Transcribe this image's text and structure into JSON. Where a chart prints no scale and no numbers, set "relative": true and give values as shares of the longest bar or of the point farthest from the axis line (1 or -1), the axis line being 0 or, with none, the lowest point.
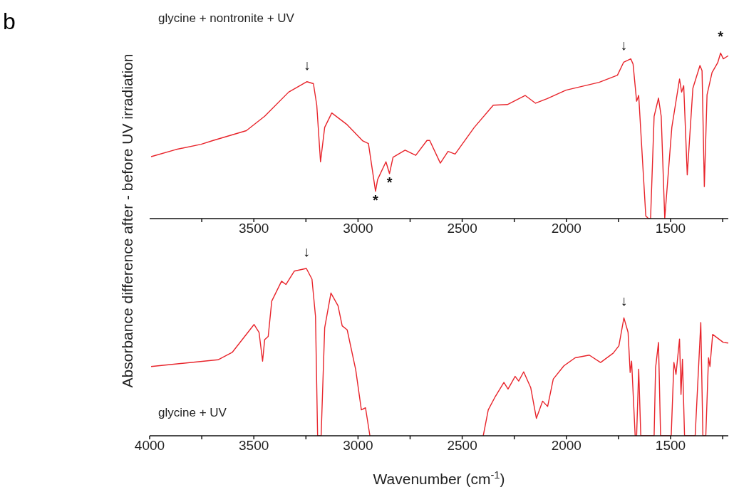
{
  "chart_data": [
    {
      "type": "line",
      "relative": true,
      "ylabel": "Absorbance difference after - before UV irradiation",
      "annotations": [
        "b",
        {
          "text": "↓",
          "x": 3245,
          "y": 0.827
        },
        {
          "text": "↓",
          "x": 1725,
          "y": 0.945
        },
        {
          "text": "*",
          "x": 2916,
          "y": 0.165
        },
        {
          "text": "*",
          "x": 2849,
          "y": 0.272
        },
        {
          "text": "*",
          "x": 1260,
          "y": 1
        }
      ],
      "xlim": [
        4000,
        1223
      ],
      "xticks": [
        {
          "value": 3750,
          "label": null
        },
        3500,
        {
          "value": 3250,
          "label": null
        },
        3000,
        {
          "value": 2750,
          "label": null
        },
        2500,
        {
          "value": 2250,
          "label": null
        },
        2000,
        {
          "value": 1750,
          "label": null
        },
        1500,
        {
          "value": 1250,
          "label": null
        }
      ],
      "tick_labels": "x",
      "legend": "top left",
      "series": [
        {
          "name": "glycine + nontronite + UV",
          "color": "#e8242b",
          "x": [
            3993,
            3875,
            3753,
            3695,
            3536,
            3448,
            3333,
            3245,
            3214,
            3198,
            3180,
            3160,
            3126,
            3052,
            2977,
            2950,
            2916,
            2906,
            2866,
            2849,
            2832,
            2774,
            2723,
            2669,
            2656,
            2605,
            2568,
            2534,
            2442,
            2351,
            2283,
            2198,
            2148,
            2093,
            2002,
            1843,
            1755,
            1725,
            1691,
            1680,
            1663,
            1653,
            1619,
            1606,
            1596,
            1579,
            1558,
            1545,
            1528,
            1494,
            1457,
            1447,
            1437,
            1420,
            1393,
            1359,
            1349,
            1338,
            1325,
            1301,
            1274,
            1260,
            1247,
            1223
          ],
          "values": [
            0.374,
            0.417,
            0.449,
            0.472,
            0.531,
            0.618,
            0.764,
            0.827,
            0.815,
            0.685,
            0.343,
            0.551,
            0.638,
            0.567,
            0.469,
            0.453,
            0.165,
            0.236,
            0.343,
            0.272,
            0.37,
            0.413,
            0.382,
            0.472,
            0.472,
            0.335,
            0.406,
            0.39,
            0.551,
            0.685,
            0.689,
            0.744,
            0.697,
            0.724,
            0.776,
            0.823,
            0.866,
            0.945,
            0.965,
            0.933,
            0.709,
            0.744,
            0.016,
            0,
            0,
            0.618,
            0.728,
            0.618,
            0,
            0.551,
            0.843,
            0.764,
            0.803,
            0.264,
            0.787,
            0.925,
            0.894,
            0.193,
            0.748,
            0.882,
            0.941,
            1,
            0.965,
            0.984
          ]
        }
      ]
    },
    {
      "type": "line",
      "relative": true,
      "xlabel": "Wavenumber (cm$^{-1}$)",
      "annotations": [
        {
          "text": "↓",
          "x": 3248,
          "y": 1
        },
        {
          "text": "↓",
          "x": 1724,
          "y": 0.705
        }
      ],
      "xlim": [
        4000,
        1223
      ],
      "xticks": [
        4000,
        {
          "value": 3750,
          "label": null
        },
        3500,
        {
          "value": 3250,
          "label": null
        },
        3000,
        {
          "value": 2750,
          "label": null
        },
        2500,
        {
          "value": 2250,
          "label": null
        },
        2000,
        {
          "value": 1750,
          "label": null
        },
        1500,
        {
          "value": 1250,
          "label": null
        }
      ],
      "tick_labels": "x",
      "legend": "bottom left",
      "series": [
        {
          "name": "glycine + UV",
          "color": "#e8242b",
          "x": [
            3993,
            3672,
            3604,
            3499,
            3475,
            3458,
            3448,
            3431,
            3414,
            3367,
            3346,
            3306,
            3248,
            3221,
            3204,
            3194,
            3177,
            3160,
            3130,
            3096,
            3076,
            3052,
            3011,
            2984,
            2964,
            2943,
            2700,
            2399,
            2375,
            2341,
            2300,
            2280,
            2246,
            2229,
            2205,
            2171,
            2144,
            2114,
            2090,
            2063,
            2012,
            1958,
            1890,
            1836,
            1775,
            1748,
            1724,
            1704,
            1694,
            1687,
            1670,
            1663,
            1653,
            1643,
            1579,
            1572,
            1558,
            1548,
            1497,
            1484,
            1474,
            1457,
            1450,
            1443,
            1433,
            1382,
            1355,
            1345,
            1331,
            1318,
            1311,
            1298,
            1247,
            1223
          ],
          "values": [
            0.414,
            0.454,
            0.498,
            0.665,
            0.618,
            0.446,
            0.574,
            0.594,
            0.805,
            0.924,
            0.904,
            0.984,
            1,
            0.936,
            0.713,
            0,
            0,
            0.645,
            0.853,
            0.777,
            0.657,
            0.633,
            0.394,
            0.155,
            0.167,
            0,
            null,
            0,
            0.155,
            0.235,
            0.319,
            0.279,
            0.355,
            0.327,
            0.382,
            0.287,
            0.104,
            0.207,
            0.175,
            0.339,
            0.418,
            0.466,
            0.482,
            0.438,
            0.494,
            0.538,
            0.705,
            0.618,
            0.378,
            0.446,
            0,
            0,
            0.398,
            0,
            0,
            0.406,
            0.558,
            0,
            0,
            0.438,
            0.367,
            0.578,
            0.247,
            0.458,
            0,
            0,
            0.677,
            0,
            0,
            0.466,
            0.414,
            0.606,
            0.558,
            0.554
          ]
        }
      ]
    }
  ]
}
